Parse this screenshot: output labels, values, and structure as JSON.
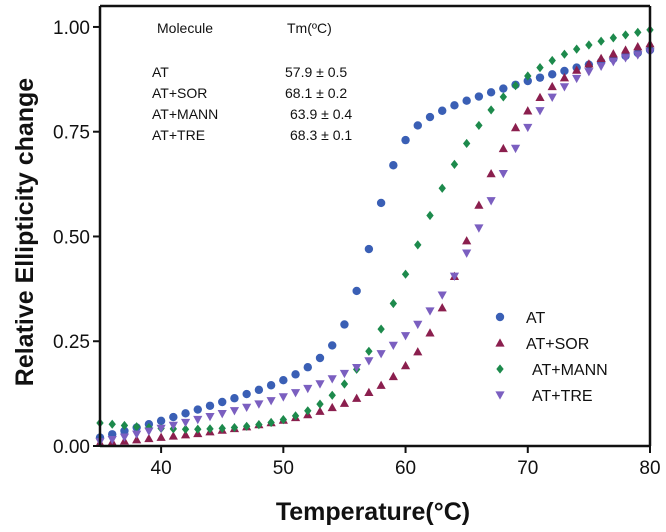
{
  "chart_data": {
    "type": "scatter",
    "title": "",
    "xlabel": "Temperature(°C)",
    "ylabel": "Relative Ellipticity change",
    "xlim": [
      35,
      80
    ],
    "ylim": [
      0,
      1.05
    ],
    "x_ticks": [
      40,
      50,
      60,
      70,
      80
    ],
    "x_tick_labels": [
      "40",
      "50",
      "60",
      "70",
      "80"
    ],
    "y_ticks": [
      0,
      0.25,
      0.5,
      0.75,
      1.0
    ],
    "y_tick_labels": [
      "0.00",
      "0.25",
      "0.50",
      "0.75",
      "1.00"
    ],
    "grid": false,
    "legend_position": "right",
    "table": {
      "headers": [
        "Molecule",
        "Tm(ºC)"
      ],
      "rows": [
        [
          "AT",
          "57.9 ± 0.5"
        ],
        [
          "AT+SOR",
          "68.1 ± 0.2"
        ],
        [
          "AT+MANN",
          "63.9 ± 0.4"
        ],
        [
          "AT+TRE",
          "68.3 ± 0.1"
        ]
      ]
    },
    "x": [
      35,
      36,
      37,
      38,
      39,
      40,
      41,
      42,
      43,
      44,
      45,
      46,
      47,
      48,
      49,
      50,
      51,
      52,
      53,
      54,
      55,
      56,
      57,
      58,
      59,
      60,
      61,
      62,
      63,
      64,
      65,
      66,
      67,
      68,
      69,
      70,
      71,
      72,
      73,
      74,
      75,
      76,
      77,
      78,
      79,
      80
    ],
    "series": [
      {
        "name": "AT",
        "color": "#3a5fb5",
        "marker": "circle",
        "values": [
          0.02,
          0.028,
          0.036,
          0.044,
          0.052,
          0.06,
          0.069,
          0.078,
          0.087,
          0.096,
          0.105,
          0.114,
          0.124,
          0.134,
          0.145,
          0.157,
          0.171,
          0.188,
          0.21,
          0.24,
          0.29,
          0.37,
          0.47,
          0.58,
          0.67,
          0.73,
          0.765,
          0.785,
          0.8,
          0.813,
          0.824,
          0.834,
          0.844,
          0.853,
          0.862,
          0.871,
          0.879,
          0.887,
          0.895,
          0.903,
          0.91,
          0.917,
          0.924,
          0.931,
          0.938,
          0.945
        ]
      },
      {
        "name": "AT+SOR",
        "color": "#8b1f4e",
        "marker": "triangle-up",
        "values": [
          0.008,
          0.01,
          0.012,
          0.015,
          0.018,
          0.021,
          0.024,
          0.027,
          0.03,
          0.034,
          0.038,
          0.042,
          0.046,
          0.051,
          0.056,
          0.062,
          0.068,
          0.075,
          0.083,
          0.092,
          0.102,
          0.114,
          0.128,
          0.145,
          0.166,
          0.192,
          0.225,
          0.27,
          0.33,
          0.405,
          0.49,
          0.575,
          0.65,
          0.71,
          0.76,
          0.8,
          0.832,
          0.858,
          0.879,
          0.897,
          0.912,
          0.925,
          0.936,
          0.945,
          0.953,
          0.96
        ]
      },
      {
        "name": "AT+MANN",
        "color": "#1d8a4c",
        "marker": "diamond",
        "values": [
          0.055,
          0.052,
          0.049,
          0.046,
          0.044,
          0.042,
          0.041,
          0.04,
          0.04,
          0.041,
          0.042,
          0.044,
          0.047,
          0.051,
          0.056,
          0.063,
          0.072,
          0.084,
          0.1,
          0.121,
          0.148,
          0.183,
          0.226,
          0.279,
          0.34,
          0.41,
          0.48,
          0.55,
          0.615,
          0.672,
          0.722,
          0.765,
          0.802,
          0.833,
          0.86,
          0.883,
          0.903,
          0.92,
          0.935,
          0.947,
          0.957,
          0.966,
          0.974,
          0.981,
          0.987,
          0.993
        ]
      },
      {
        "name": "AT+TRE",
        "color": "#7b5fc0",
        "marker": "triangle-down",
        "values": [
          0.01,
          0.015,
          0.021,
          0.028,
          0.035,
          0.042,
          0.049,
          0.056,
          0.063,
          0.07,
          0.077,
          0.084,
          0.092,
          0.1,
          0.108,
          0.117,
          0.127,
          0.137,
          0.148,
          0.16,
          0.173,
          0.187,
          0.203,
          0.22,
          0.24,
          0.263,
          0.29,
          0.322,
          0.36,
          0.405,
          0.46,
          0.52,
          0.585,
          0.65,
          0.71,
          0.76,
          0.8,
          0.832,
          0.857,
          0.877,
          0.893,
          0.906,
          0.917,
          0.926,
          0.933,
          0.94
        ]
      }
    ]
  }
}
